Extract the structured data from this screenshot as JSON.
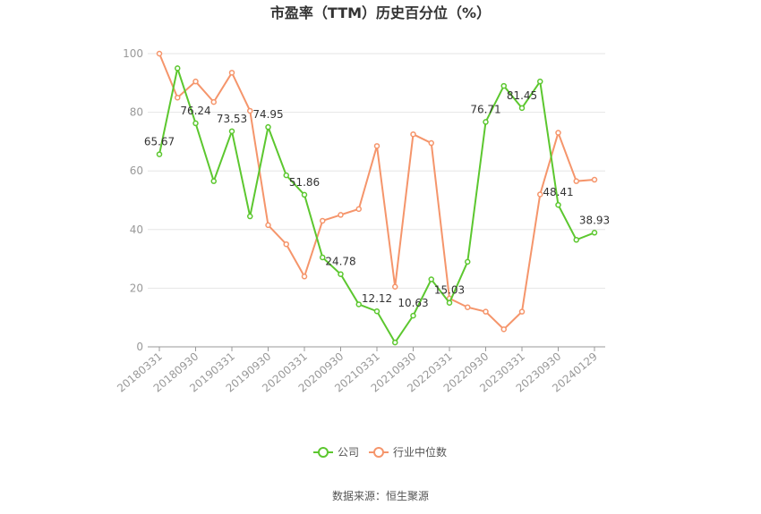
{
  "source_label": "数据来源：恒生聚源",
  "chart_data": {
    "type": "line",
    "title": "市盈率（TTM）历史百分位（%）",
    "xlabel": "",
    "ylabel": "",
    "ylim": [
      0,
      100
    ],
    "yticks": [
      0,
      20,
      40,
      60,
      80,
      100
    ],
    "grid": true,
    "legend_position": "bottom",
    "x": [
      "20180331",
      "20180630",
      "20180930",
      "20181231",
      "20190331",
      "20190630",
      "20190930",
      "20191231",
      "20200331",
      "20200630",
      "20200930",
      "20201231",
      "20210331",
      "20210630",
      "20210930",
      "20211231",
      "20220331",
      "20220630",
      "20220930",
      "20221231",
      "20230331",
      "20230630",
      "20230930",
      "20231231",
      "20240129"
    ],
    "xtick_labels": [
      "20180331",
      "20180930",
      "20190331",
      "20190930",
      "20200331",
      "20200930",
      "20210331",
      "20210930",
      "20220331",
      "20220930",
      "20230331",
      "20230930",
      "20240129"
    ],
    "series": [
      {
        "name": "公司",
        "color": "#5cc72f",
        "values": [
          65.67,
          95,
          76.24,
          56.5,
          73.53,
          44.5,
          74.95,
          58.5,
          51.86,
          30.5,
          24.78,
          14.5,
          12.12,
          1.5,
          10.63,
          23,
          15.03,
          29,
          76.71,
          89,
          81.45,
          90.5,
          48.41,
          36.5,
          38.93
        ],
        "data_labels": {
          "0": "65.67",
          "2": "76.24",
          "4": "73.53",
          "6": "74.95",
          "8": "51.86",
          "10": "24.78",
          "12": "12.12",
          "14": "10.63",
          "16": "15.03",
          "18": "76.71",
          "20": "81.45",
          "22": "48.41",
          "24": "38.93"
        }
      },
      {
        "name": "行业中位数",
        "color": "#f5956b",
        "values": [
          100,
          85,
          90.5,
          83.5,
          93.5,
          80.5,
          41.5,
          35,
          24,
          43,
          45,
          47,
          68.5,
          20.5,
          72.5,
          69.5,
          16.5,
          13.5,
          12,
          6,
          12,
          52,
          73,
          56.5,
          57
        ]
      }
    ]
  }
}
